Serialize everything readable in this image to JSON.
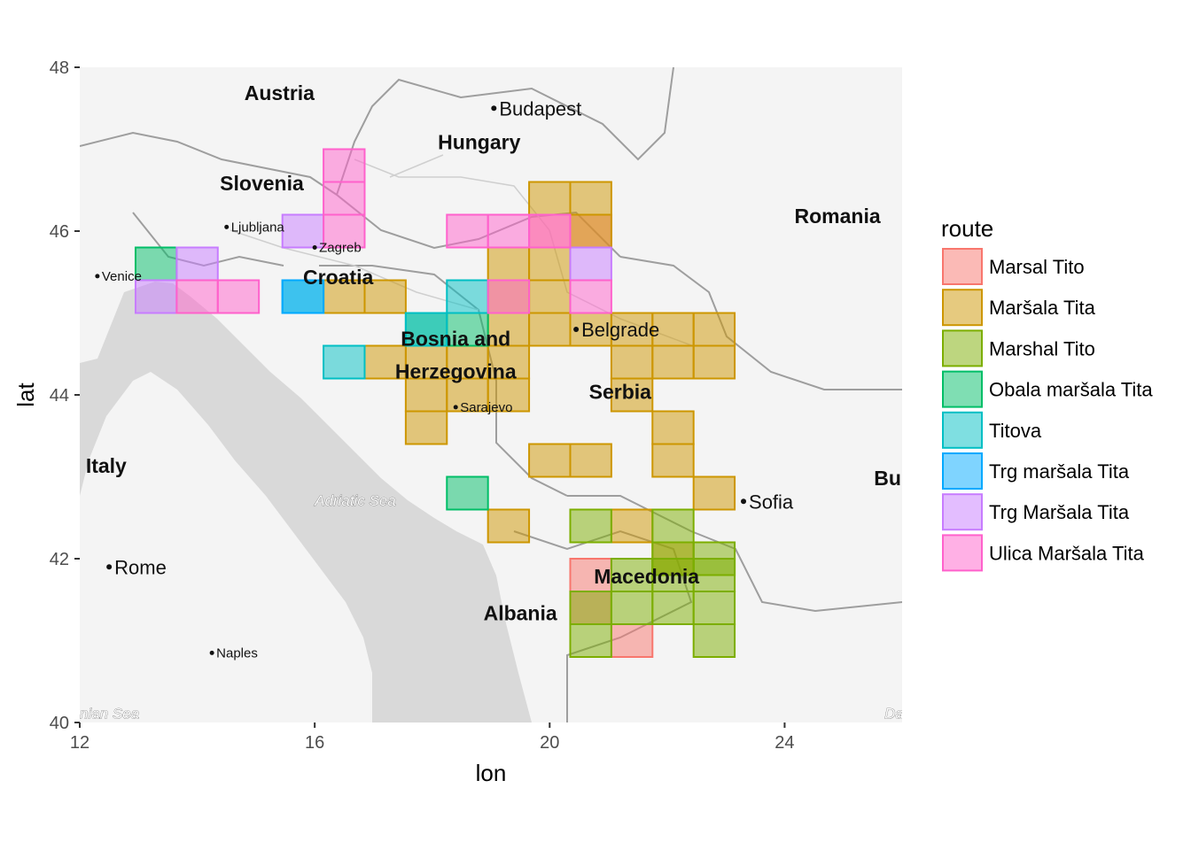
{
  "chart_data": {
    "type": "heatmap",
    "xlabel": "lon",
    "ylabel": "lat",
    "xlim": [
      12,
      26
    ],
    "ylim": [
      40,
      48
    ],
    "x_ticks": [
      12,
      16,
      20,
      24
    ],
    "y_ticks": [
      40,
      42,
      44,
      46,
      48
    ],
    "x_tick_labels": [
      "12",
      "16",
      "20",
      "24"
    ],
    "y_tick_labels": [
      "40",
      "42",
      "44",
      "46",
      "48"
    ],
    "legend": {
      "title": "route",
      "position": "right"
    },
    "basemap": {
      "countries": [
        {
          "label": "Austria",
          "lon": 15.4,
          "lat": 47.6
        },
        {
          "label": "Hungary",
          "lon": 18.8,
          "lat": 47.0
        },
        {
          "label": "Slovenia",
          "lon": 15.1,
          "lat": 46.5
        },
        {
          "label": "Croatia",
          "lon": 16.4,
          "lat": 45.35
        },
        {
          "label": "Romania",
          "lon": 24.9,
          "lat": 46.1
        },
        {
          "label": "Bosnia and",
          "lon": 18.4,
          "lat": 44.6
        },
        {
          "label": "Herzegovina",
          "lon": 18.4,
          "lat": 44.2
        },
        {
          "label": "Serbia",
          "lon": 21.2,
          "lat": 43.95
        },
        {
          "label": "Italy",
          "lon": 12.45,
          "lat": 43.05
        },
        {
          "label": "Macedonia",
          "lon": 21.65,
          "lat": 41.7
        },
        {
          "label": "Albania",
          "lon": 19.5,
          "lat": 41.25
        },
        {
          "label": "Bul",
          "lon": 25.8,
          "lat": 42.9
        }
      ],
      "cities": [
        {
          "label": "Budapest",
          "lon": 19.05,
          "lat": 47.5
        },
        {
          "label": "Belgrade",
          "lon": 20.45,
          "lat": 44.8
        },
        {
          "label": "Sofia",
          "lon": 23.3,
          "lat": 42.7
        },
        {
          "label": "Rome",
          "lon": 12.5,
          "lat": 41.9
        }
      ],
      "minor_cities": [
        {
          "label": "Ljubljana",
          "lon": 14.5,
          "lat": 46.05
        },
        {
          "label": "Zagreb",
          "lon": 16.0,
          "lat": 45.8
        },
        {
          "label": "Venice",
          "lon": 12.3,
          "lat": 45.45
        },
        {
          "label": "Sarajevo",
          "lon": 18.4,
          "lat": 43.85
        },
        {
          "label": "Naples",
          "lon": 14.25,
          "lat": 40.85
        }
      ],
      "seas": [
        {
          "label": "Adriatic Sea",
          "lon": 16.0,
          "lat": 42.65
        },
        {
          "label": "nian Sea",
          "lon": 12.0,
          "lat": 40.05
        },
        {
          "label": "Da",
          "lon": 25.7,
          "lat": 40.05
        }
      ]
    },
    "series": [
      {
        "name": "Marsal Tito",
        "color": "#F8766D",
        "cells": [
          [
            20,
            46
          ],
          [
            20.7,
            46
          ],
          [
            20.7,
            41.8
          ],
          [
            20.7,
            41.4
          ],
          [
            21.4,
            41.0
          ]
        ]
      },
      {
        "name": "Maršala Tita",
        "color": "#CD9600",
        "cells": [
          [
            20,
            46.4
          ],
          [
            20.7,
            46.4
          ],
          [
            20.7,
            46
          ],
          [
            19.3,
            45.6
          ],
          [
            20,
            45.6
          ],
          [
            19.3,
            45.2
          ],
          [
            20,
            45.2
          ],
          [
            16.5,
            45.2
          ],
          [
            17.2,
            45.2
          ],
          [
            19.3,
            44.8
          ],
          [
            20,
            44.8
          ],
          [
            20.7,
            44.8
          ],
          [
            21.4,
            44.8
          ],
          [
            22.1,
            44.8
          ],
          [
            22.8,
            44.8
          ],
          [
            18.6,
            44.4
          ],
          [
            19.3,
            44.4
          ],
          [
            17.2,
            44.4
          ],
          [
            17.9,
            44.4
          ],
          [
            21.4,
            44.4
          ],
          [
            22.1,
            44.4
          ],
          [
            22.8,
            44.4
          ],
          [
            17.9,
            44.0
          ],
          [
            18.6,
            44.0
          ],
          [
            19.3,
            44.0
          ],
          [
            21.4,
            44.0
          ],
          [
            17.9,
            43.6
          ],
          [
            22.1,
            43.6
          ],
          [
            20,
            43.2
          ],
          [
            20.7,
            43.2
          ],
          [
            22.1,
            43.2
          ],
          [
            22.8,
            42.8
          ],
          [
            19.3,
            42.4
          ],
          [
            21.4,
            42.4
          ],
          [
            22.1,
            42.0
          ]
        ]
      },
      {
        "name": "Marshal Tito",
        "color": "#7CAE00",
        "cells": [
          [
            20.7,
            42.4
          ],
          [
            22.1,
            42.4
          ],
          [
            22.1,
            42.0
          ],
          [
            22.8,
            42.0
          ],
          [
            21.4,
            41.8
          ],
          [
            22.1,
            41.8
          ],
          [
            22.8,
            41.8
          ],
          [
            20.7,
            41.4
          ],
          [
            21.4,
            41.4
          ],
          [
            22.1,
            41.4
          ],
          [
            22.8,
            41.4
          ],
          [
            20.7,
            41.0
          ],
          [
            22.8,
            41.0
          ]
        ]
      },
      {
        "name": "Obala maršala Tita",
        "color": "#00BE67",
        "cells": [
          [
            13.3,
            45.6
          ],
          [
            17.9,
            44.8
          ],
          [
            18.6,
            44.8
          ],
          [
            18.6,
            42.8
          ]
        ]
      },
      {
        "name": "Titova",
        "color": "#00BFC4",
        "cells": [
          [
            15.8,
            45.2
          ],
          [
            18.6,
            45.2
          ],
          [
            16.5,
            44.4
          ],
          [
            17.9,
            44.8
          ]
        ]
      },
      {
        "name": "Trg maršala Tita",
        "color": "#00A9FF",
        "cells": [
          [
            15.8,
            45.2
          ]
        ]
      },
      {
        "name": "Trg Maršala Tita",
        "color": "#C77CFF",
        "cells": [
          [
            15.8,
            46
          ],
          [
            14,
            45.6
          ],
          [
            13.3,
            45.2
          ],
          [
            20.7,
            45.6
          ]
        ]
      },
      {
        "name": "Ulica Maršala Tita",
        "color": "#FF61CC",
        "cells": [
          [
            16.5,
            46.8
          ],
          [
            16.5,
            46.4
          ],
          [
            16.5,
            46
          ],
          [
            14,
            45.2
          ],
          [
            14.7,
            45.2
          ],
          [
            18.6,
            46
          ],
          [
            19.3,
            46
          ],
          [
            20,
            46
          ],
          [
            19.3,
            45.2
          ],
          [
            20.7,
            45.2
          ]
        ]
      }
    ]
  }
}
